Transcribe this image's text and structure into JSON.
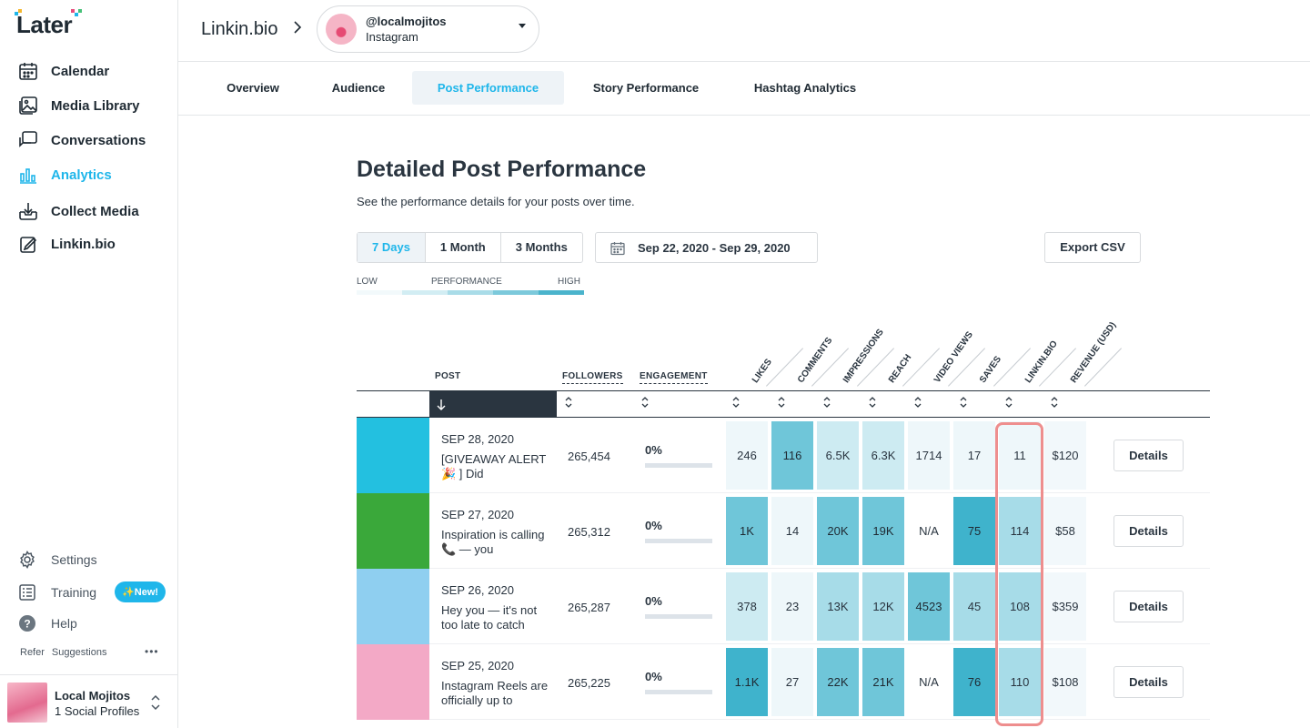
{
  "brand": {
    "logo": "Later"
  },
  "sidebar": {
    "items": [
      {
        "label": "Calendar",
        "icon": "calendar-icon",
        "active": false
      },
      {
        "label": "Media Library",
        "icon": "media-library-icon",
        "active": false
      },
      {
        "label": "Conversations",
        "icon": "conversations-icon",
        "active": false
      },
      {
        "label": "Analytics",
        "icon": "analytics-icon",
        "active": true
      },
      {
        "label": "Collect Media",
        "icon": "collect-media-icon",
        "active": false
      },
      {
        "label": "Linkin.bio",
        "icon": "linkin-bio-icon",
        "active": false
      }
    ],
    "settings": "Settings",
    "training": "Training",
    "new_badge": "✨New!",
    "help": "Help",
    "refer": "Refer",
    "suggestions": "Suggestions",
    "more": "•••",
    "profile": {
      "name": "Local Mojitos",
      "count": "1 Social Profiles"
    }
  },
  "header": {
    "breadcrumb": "Linkin.bio",
    "account": {
      "handle": "@localmojitos",
      "network": "Instagram"
    }
  },
  "tabs": [
    "Overview",
    "Audience",
    "Post Performance",
    "Story Performance",
    "Hashtag Analytics"
  ],
  "active_tab": "Post Performance",
  "main": {
    "title": "Detailed Post Performance",
    "subtitle": "See the performance details for your posts over time.",
    "ranges": [
      "7 Days",
      "1 Month",
      "3 Months"
    ],
    "active_range": "7 Days",
    "date_range": "Sep 22, 2020 - Sep 29, 2020",
    "export": "Export CSV",
    "legend": {
      "low": "LOW",
      "mid": "PERFORMANCE",
      "high": "HIGH"
    },
    "legend_colors": [
      "#f2f9fb",
      "#d2edf3",
      "#a9dce8",
      "#7cc9db",
      "#4bb4cc"
    ]
  },
  "table": {
    "headers": {
      "post": "POST",
      "followers": "FOLLOWERS",
      "engagement": "ENGAGEMENT",
      "metrics": [
        "LIKES",
        "COMMENTS",
        "IMPRESSIONS",
        "REACH",
        "VIDEO VIEWS",
        "SAVES",
        "LINKIN.BIO",
        "REVENUE (USD)"
      ]
    },
    "sort_arrow": "↓",
    "sort_glyph": "⌃⌄",
    "details_label": "Details",
    "rows": [
      {
        "date": "SEP 28, 2020",
        "caption": "[GIVEAWAY ALERT 🎉 ] Did",
        "followers": "265,454",
        "engagement": "0%",
        "metrics": [
          "246",
          "116",
          "6.5K",
          "6.3K",
          "1714",
          "17",
          "11"
        ],
        "levels": [
          0,
          3,
          1,
          1,
          0,
          0,
          0
        ],
        "revenue": "$120",
        "thumb": "#23c0e0"
      },
      {
        "date": "SEP 27, 2020",
        "caption": "Inspiration is calling 📞 — you",
        "followers": "265,312",
        "engagement": "0%",
        "metrics": [
          "1K",
          "14",
          "20K",
          "19K",
          "N/A",
          "75",
          "114"
        ],
        "levels": [
          3,
          0,
          3,
          3,
          -1,
          4,
          2
        ],
        "revenue": "$58",
        "thumb": "#3aa83a"
      },
      {
        "date": "SEP 26, 2020",
        "caption": "Hey you — it's not too late to catch",
        "followers": "265,287",
        "engagement": "0%",
        "metrics": [
          "378",
          "23",
          "13K",
          "12K",
          "4523",
          "45",
          "108"
        ],
        "levels": [
          1,
          0,
          2,
          2,
          3,
          2,
          2
        ],
        "revenue": "$359",
        "thumb": "#8fcff0"
      },
      {
        "date": "SEP 25, 2020",
        "caption": "Instagram Reels are officially up to",
        "followers": "265,225",
        "engagement": "0%",
        "metrics": [
          "1.1K",
          "27",
          "22K",
          "21K",
          "N/A",
          "76",
          "110"
        ],
        "levels": [
          4,
          0,
          3,
          3,
          -1,
          4,
          2
        ],
        "revenue": "$108",
        "thumb": "#f3a9c6"
      }
    ]
  },
  "colors": {
    "accent": "#1fb6ea",
    "heat": [
      "#eef7fa",
      "#cdebf2",
      "#a7dce8",
      "#6fc6d9",
      "#3fb3cc"
    ]
  }
}
